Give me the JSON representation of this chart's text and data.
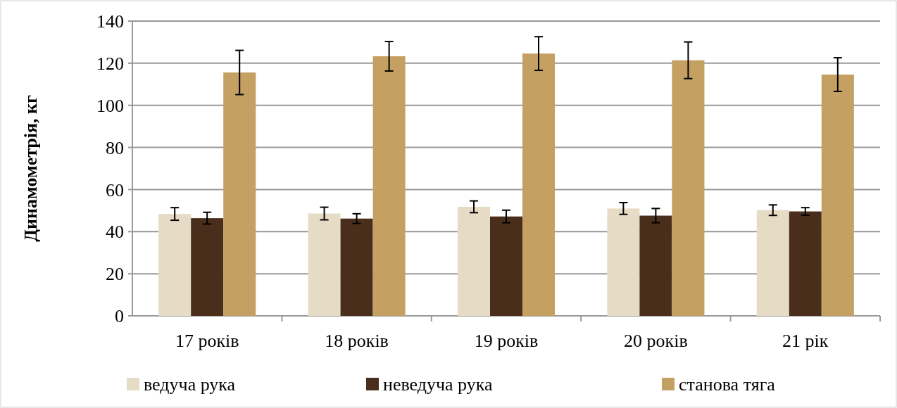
{
  "chart_data": {
    "type": "bar",
    "ylabel": "Динамометрія, кг",
    "categories": [
      "17 років",
      "18 років",
      "19 років",
      "20 років",
      "21 рік"
    ],
    "series": [
      {
        "name": "ведуча рука",
        "color": "#e6dcc6",
        "values": [
          48.4,
          48.6,
          51.8,
          51,
          50.2
        ],
        "errors": [
          3,
          3,
          2.8,
          2.8,
          2.5
        ]
      },
      {
        "name": "неведуча рука",
        "color": "#4a2e1c",
        "values": [
          46.4,
          46.2,
          47.2,
          47.6,
          49.6
        ],
        "errors": [
          2.8,
          2.3,
          3,
          3.4,
          1.8
        ]
      },
      {
        "name": "станова тяга",
        "color": "#c4a062",
        "values": [
          115.6,
          123.3,
          124.6,
          121.4,
          114.6
        ],
        "errors": [
          10.5,
          7,
          8,
          8.7,
          8
        ]
      }
    ],
    "ylim": [
      0,
      140
    ],
    "yticks": [
      0,
      20,
      40,
      60,
      80,
      100,
      120,
      140
    ],
    "grid": "y",
    "legend": "bottom"
  }
}
